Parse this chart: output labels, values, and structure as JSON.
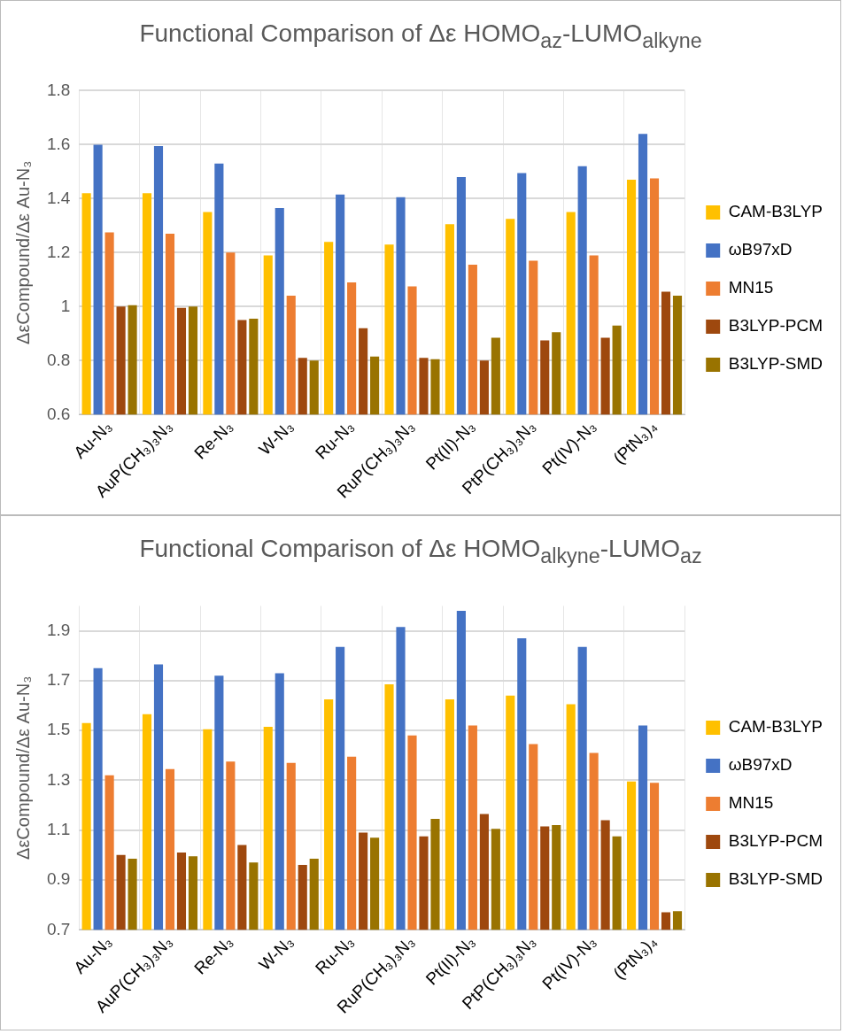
{
  "chart_data": [
    {
      "type": "bar",
      "title": "Functional Comparison of Δε HOMO$_{az}$-LUMO$_{alkyne}$",
      "ylabel": "ΔεCompound/Δε Au-N₃",
      "categories": [
        "Au-N₃",
        "AuP(CH₃)₃N₃",
        "Re-N₃",
        "W-N₃",
        "Ru-N₃",
        "RuP(CH₃)₃N₃",
        "Pt(II)-N₃",
        "PtP(CH₃)₃N₃",
        "Pt(IV)-N₃",
        "(PtN₃)₄"
      ],
      "series": [
        {
          "name": "CAM-B3LYP",
          "color": "#ffc000",
          "values": [
            1.42,
            1.42,
            1.35,
            1.19,
            1.24,
            1.23,
            1.305,
            1.325,
            1.35,
            1.47
          ]
        },
        {
          "name": "ωB97xD",
          "color": "#4472c4",
          "values": [
            1.6,
            1.595,
            1.53,
            1.365,
            1.415,
            1.405,
            1.48,
            1.495,
            1.52,
            1.64
          ]
        },
        {
          "name": "MN15",
          "color": "#ed7d31",
          "values": [
            1.275,
            1.27,
            1.2,
            1.04,
            1.09,
            1.075,
            1.155,
            1.17,
            1.19,
            1.475
          ]
        },
        {
          "name": "B3LYP-PCM",
          "color": "#9e480e",
          "values": [
            1.0,
            0.995,
            0.95,
            0.81,
            0.92,
            0.81,
            0.8,
            0.875,
            0.885,
            1.055
          ]
        },
        {
          "name": "B3LYP-SMD",
          "color": "#997300",
          "values": [
            1.005,
            1.0,
            0.955,
            0.8,
            0.815,
            0.805,
            0.885,
            0.905,
            0.93,
            1.04
          ]
        }
      ],
      "ylim": [
        0.6,
        1.8
      ],
      "yticks": [
        0.6,
        0.8,
        1,
        1.2,
        1.4,
        1.6,
        1.8
      ],
      "grid": true,
      "legend": "right"
    },
    {
      "type": "bar",
      "title": "Functional Comparison of Δε HOMO$_{alkyne}$-LUMO$_{az}$",
      "ylabel": "ΔεCompound/Δε Au-N₃",
      "categories": [
        "Au-N₃",
        "AuP(CH₃)₃N₃",
        "Re-N₃",
        "W-N₃",
        "Ru-N₃",
        "RuP(CH₃)₃N₃",
        "Pt(II)-N₃",
        "PtP(CH₃)₃N₃",
        "Pt(IV)-N₃",
        "(PtN₃)₄"
      ],
      "series": [
        {
          "name": "CAM-B3LYP",
          "color": "#ffc000",
          "values": [
            1.53,
            1.565,
            1.505,
            1.515,
            1.625,
            1.685,
            1.625,
            1.64,
            1.605,
            1.295
          ]
        },
        {
          "name": "ωB97xD",
          "color": "#4472c4",
          "values": [
            1.75,
            1.765,
            1.72,
            1.73,
            1.835,
            1.915,
            1.98,
            1.87,
            1.835,
            1.52
          ]
        },
        {
          "name": "MN15",
          "color": "#ed7d31",
          "values": [
            1.32,
            1.345,
            1.375,
            1.37,
            1.395,
            1.48,
            1.52,
            1.445,
            1.41,
            1.29
          ]
        },
        {
          "name": "B3LYP-PCM",
          "color": "#9e480e",
          "values": [
            1.0,
            1.01,
            1.04,
            0.96,
            1.09,
            1.075,
            1.165,
            1.115,
            1.14,
            0.77
          ]
        },
        {
          "name": "B3LYP-SMD",
          "color": "#997300",
          "values": [
            0.985,
            0.995,
            0.97,
            0.985,
            1.07,
            1.145,
            1.105,
            1.12,
            1.075,
            0.775
          ]
        }
      ],
      "ylim": [
        0.7,
        2.0
      ],
      "yticks": [
        0.7,
        0.9,
        1.1,
        1.3,
        1.5,
        1.7,
        1.9
      ],
      "grid": true,
      "legend": "right"
    }
  ]
}
